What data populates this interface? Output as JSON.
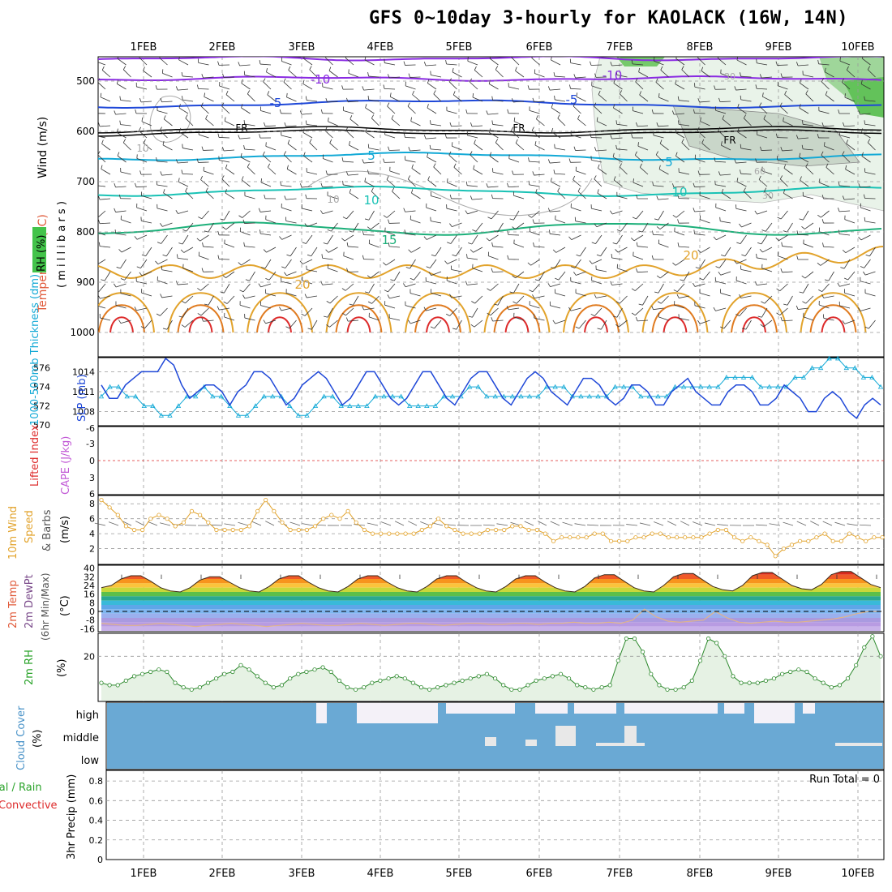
{
  "title": "GFS 0~10day 3-hourly for KAOLACK (16W, 14N)",
  "colors": {
    "purple": "#8a2be2",
    "blue": "#1f48d8",
    "cyan": "#12a9d6",
    "teal": "#19c2b5",
    "green_line": "#1db07a",
    "orange": "#e2a32c",
    "dark_orange": "#e07b20",
    "red": "#dd2b2b",
    "rh_green": "#43c34a",
    "gray": "#9a9a9a",
    "cloud_blue": "#6aa9d4",
    "cloud_white": "#f4f1f8"
  },
  "date_labels": [
    "1FEB",
    "2FEB",
    "3FEB",
    "4FEB",
    "5FEB",
    "6FEB",
    "7FEB",
    "8FEB",
    "9FEB",
    "10FEB"
  ],
  "panels": {
    "upper": {
      "ylabel_wind": "Wind (m/s)",
      "ylabel_temp": "Temperature (°C)",
      "ylabel_rh": "RH (%)",
      "ylabel_mb": "( m i l l i b a r s )",
      "pressure_ticks": [
        "500",
        "600",
        "700",
        "800",
        "900",
        "1000"
      ],
      "contour_labels": [
        "-10",
        "-10",
        "-5",
        "-5",
        "FR",
        "FR",
        "FR",
        "5",
        "5",
        "10",
        "10",
        "10",
        "10",
        "15",
        "20",
        "20",
        "30",
        "30",
        "60"
      ]
    },
    "slp": {
      "ylabel_left": "1000-500mb Thickness (dm)",
      "ylabel_right": "SLP (mb)",
      "thickness_ticks": [
        "576",
        "574",
        "572",
        "570"
      ],
      "slp_ticks": [
        "1014",
        "1011",
        "1008"
      ]
    },
    "cape": {
      "ylabel_left": "Lifted Index",
      "ylabel_right": "CAPE (J/kg)",
      "li_ticks": [
        "-6",
        "-3",
        "0",
        "3",
        "6"
      ]
    },
    "wind10": {
      "ylabel1": "10m Wind",
      "ylabel2": "Speed",
      "ylabel3": "& Barbs",
      "ylabel4": "(m/s)",
      "ticks": [
        "8",
        "6",
        "4",
        "2"
      ]
    },
    "temp2m": {
      "ylabel1": "2m Temp",
      "ylabel2": "2m DewPt",
      "ylabel3": "(6hr Min/Max)",
      "ylabel4": "(°C)",
      "ticks": [
        "40",
        "32",
        "24",
        "16",
        "8",
        "0",
        "-8",
        "-16"
      ]
    },
    "rh2m": {
      "ylabel1": "2m RH",
      "ylabel2": "(%)",
      "ticks": [
        "20"
      ]
    },
    "cloud": {
      "ylabel1": "Cloud Cover",
      "ylabel2": "(%)",
      "levels": [
        "high",
        "middle",
        "low"
      ]
    },
    "precip": {
      "ylabel1": "Total / Rain",
      "ylabel2": "Convective",
      "ylabel3": "3hr Precip (mm)",
      "ticks": [
        "0.8",
        "0.6",
        "0.4",
        "0.2",
        "0"
      ],
      "run_total": "Run Total = 0"
    }
  },
  "chart_data": [
    {
      "type": "line",
      "name": "SLP (mb)",
      "x_units": "3-hourly steps from 31JAN 12Z",
      "values": [
        1012,
        1010,
        1010,
        1012,
        1013,
        1014,
        1014,
        1014,
        1016,
        1015,
        1012,
        1010,
        1011,
        1012,
        1012,
        1011,
        1009,
        1011,
        1012,
        1014,
        1014,
        1013,
        1011,
        1009,
        1010,
        1012,
        1013,
        1014,
        1013,
        1011,
        1009,
        1010,
        1012,
        1014,
        1014,
        1012,
        1010,
        1009,
        1010,
        1012,
        1014,
        1014,
        1012,
        1010,
        1009,
        1011,
        1013,
        1014,
        1014,
        1012,
        1010,
        1009,
        1011,
        1013,
        1014,
        1013,
        1011,
        1010,
        1009,
        1011,
        1013,
        1013,
        1012,
        1010,
        1009,
        1010,
        1012,
        1012,
        1011,
        1009,
        1009,
        1011,
        1012,
        1013,
        1011,
        1010,
        1009,
        1009,
        1011,
        1012,
        1012,
        1011,
        1009,
        1009,
        1010,
        1012,
        1011,
        1010,
        1008,
        1008,
        1010,
        1011,
        1010,
        1008,
        1007,
        1009,
        1010,
        1009
      ],
      "ylim": [
        1006,
        1016
      ]
    },
    {
      "type": "line",
      "name": "1000-500mb Thickness (dm)",
      "values": [
        573,
        574,
        574,
        573,
        573,
        572,
        572,
        571,
        571,
        572,
        573,
        573,
        574,
        573,
        573,
        572,
        571,
        571,
        572,
        573,
        573,
        573,
        572,
        571,
        571,
        572,
        573,
        573,
        572,
        572,
        572,
        572,
        573,
        573,
        573,
        573,
        572,
        572,
        572,
        572,
        573,
        573,
        573,
        574,
        574,
        573,
        573,
        573,
        573,
        573,
        573,
        573,
        574,
        574,
        574,
        573,
        573,
        573,
        573,
        573,
        574,
        574,
        574,
        573,
        573,
        573,
        573,
        574,
        574,
        574,
        574,
        574,
        574,
        575,
        575,
        575,
        575,
        574,
        574,
        574,
        574,
        575,
        575,
        576,
        576,
        577,
        577,
        576,
        576,
        575,
        575,
        574
      ],
      "ylim": [
        570,
        577
      ]
    },
    {
      "type": "line",
      "name": "10m Wind Speed (m/s)",
      "values": [
        8.5,
        7.5,
        6.5,
        5,
        4.5,
        4.5,
        6,
        6.5,
        6,
        5,
        5.5,
        7,
        6.5,
        5.5,
        4.5,
        4.5,
        4.5,
        4.5,
        5,
        7,
        8.5,
        7,
        5.5,
        4.5,
        4.5,
        4.5,
        5,
        6,
        6.5,
        6,
        7,
        5.5,
        4.5,
        4,
        4,
        4,
        4,
        4,
        4,
        4.5,
        5,
        6,
        5,
        4.5,
        4,
        4,
        4,
        4.5,
        4.5,
        4.5,
        5,
        5,
        4.5,
        4.5,
        4,
        3,
        3.5,
        3.5,
        3.5,
        3.5,
        4,
        4,
        3,
        3,
        3,
        3.5,
        3.5,
        4,
        4,
        3.5,
        3.5,
        3.5,
        3.5,
        3.5,
        4,
        4.5,
        4.5,
        3.5,
        3,
        3.5,
        3,
        2.5,
        1,
        2,
        2.5,
        3,
        3,
        3.5,
        4,
        3,
        3,
        4,
        3.5,
        3,
        3.5,
        3.5
      ],
      "ylim": [
        0,
        9
      ]
    },
    {
      "type": "area",
      "name": "2m Temp (°C)",
      "values": [
        22,
        24,
        30,
        33,
        33,
        28,
        22,
        19,
        18,
        22,
        29,
        32,
        32,
        27,
        22,
        19,
        18,
        23,
        30,
        33,
        33,
        27,
        22,
        19,
        18,
        23,
        30,
        33,
        33,
        27,
        22,
        19,
        18,
        23,
        30,
        33,
        33,
        27,
        22,
        19,
        18,
        23,
        30,
        33,
        33,
        27,
        22,
        19,
        18,
        23,
        31,
        34,
        34,
        28,
        22,
        19,
        18,
        24,
        32,
        35,
        35,
        29,
        23,
        20,
        19,
        24,
        33,
        36,
        36,
        30,
        24,
        21,
        20,
        25,
        34,
        37,
        37,
        31,
        25,
        22
      ],
      "dewpoint_values": [
        -11,
        -12,
        -13,
        -13,
        -12,
        -11,
        -12,
        -13,
        -14,
        -13,
        -12,
        -11,
        -12,
        -13,
        -14,
        -13,
        -12,
        -11,
        -12,
        -13,
        -13,
        -12,
        -11,
        -12,
        -13,
        -12,
        -11,
        -11,
        -12,
        -13,
        -12,
        -11,
        -11,
        -12,
        -12,
        -11,
        -11,
        -12,
        -11,
        -11,
        -10,
        -11,
        -11,
        -10,
        -11,
        -8,
        2,
        -5,
        -9,
        -10,
        -9,
        -8,
        0,
        -6,
        -10,
        -11,
        -10,
        -9,
        -10,
        -10,
        -9,
        -8,
        -7,
        -5,
        -2,
        0,
        0
      ],
      "ylim": [
        -18,
        42
      ]
    },
    {
      "type": "area",
      "name": "2m RH (%)",
      "values": [
        8,
        7,
        7,
        9,
        11,
        12,
        13,
        14,
        13,
        8,
        6,
        5,
        6,
        8,
        10,
        12,
        13,
        16,
        14,
        11,
        8,
        6,
        7,
        10,
        12,
        13,
        14,
        15,
        13,
        9,
        6,
        5,
        6,
        8,
        9,
        10,
        11,
        10,
        8,
        6,
        5,
        6,
        7,
        8,
        9,
        10,
        11,
        12,
        10,
        7,
        5,
        5,
        7,
        9,
        10,
        11,
        12,
        10,
        7,
        6,
        5,
        6,
        7,
        18,
        28,
        28,
        22,
        12,
        7,
        5,
        5,
        6,
        9,
        18,
        28,
        26,
        20,
        11,
        8,
        8,
        8,
        9,
        10,
        12,
        13,
        14,
        13,
        10,
        8,
        6,
        7,
        10,
        16,
        24,
        29,
        20
      ],
      "ylim": [
        0,
        30
      ]
    },
    {
      "type": "table",
      "name": "Cloud Cover (%)",
      "levels": [
        "high",
        "middle",
        "low"
      ]
    },
    {
      "type": "bar",
      "name": "3hr Precip (mm)",
      "values": [],
      "ylim": [
        0,
        0.9
      ]
    }
  ]
}
